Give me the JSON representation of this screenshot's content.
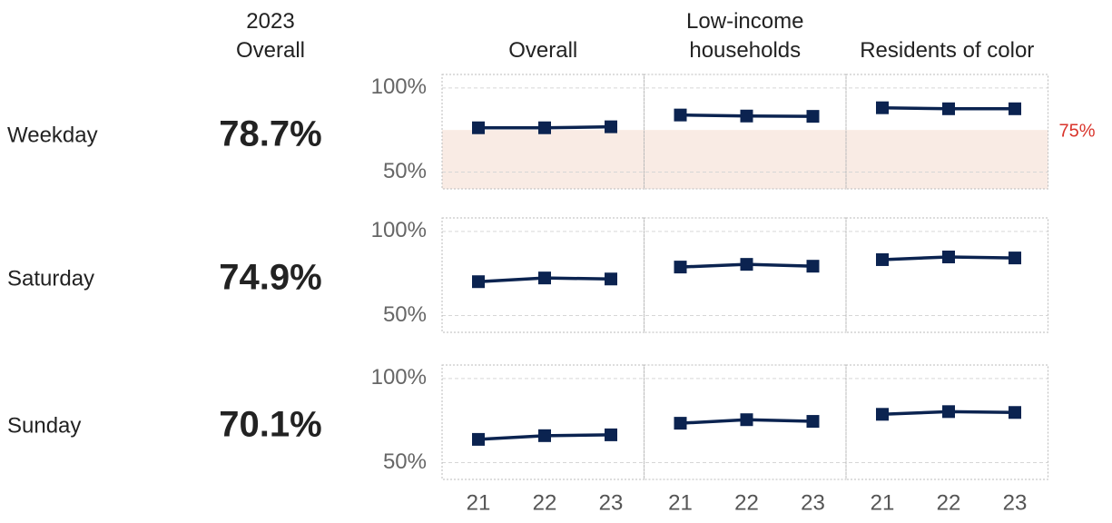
{
  "chart_data": {
    "type": "line",
    "summary_title": "2023 Overall",
    "columns": [
      "Overall",
      "Low-income households",
      "Residents of color"
    ],
    "x": [
      "21",
      "22",
      "23"
    ],
    "color": "#0b2350",
    "ylim": [
      40,
      108
    ],
    "yticks": [
      {
        "value": 100,
        "label": "100%"
      },
      {
        "value": 50,
        "label": "50%"
      }
    ],
    "grid": true,
    "rows": [
      {
        "name": "Weekday",
        "summary_value": 78.7,
        "summary_value_label": "78.7%",
        "threshold": {
          "value": 75,
          "label": "75%",
          "color": "#f9ebe4",
          "label_color": "#d9342b"
        },
        "values": [
          [
            76.3,
            76.3,
            76.9
          ],
          [
            83.9,
            83.3,
            83.1
          ],
          [
            88.2,
            87.6,
            87.6
          ]
        ]
      },
      {
        "name": "Saturday",
        "summary_value": 74.9,
        "summary_value_label": "74.9%",
        "values": [
          [
            70.1,
            72.3,
            71.7
          ],
          [
            78.8,
            80.4,
            79.3
          ],
          [
            83.2,
            84.8,
            84.2
          ]
        ]
      },
      {
        "name": "Sunday",
        "summary_value": 70.1,
        "summary_value_label": "70.1%",
        "values": [
          [
            63.8,
            66.0,
            66.5
          ],
          [
            73.4,
            75.5,
            74.5
          ],
          [
            78.7,
            80.3,
            79.8
          ]
        ]
      }
    ]
  }
}
